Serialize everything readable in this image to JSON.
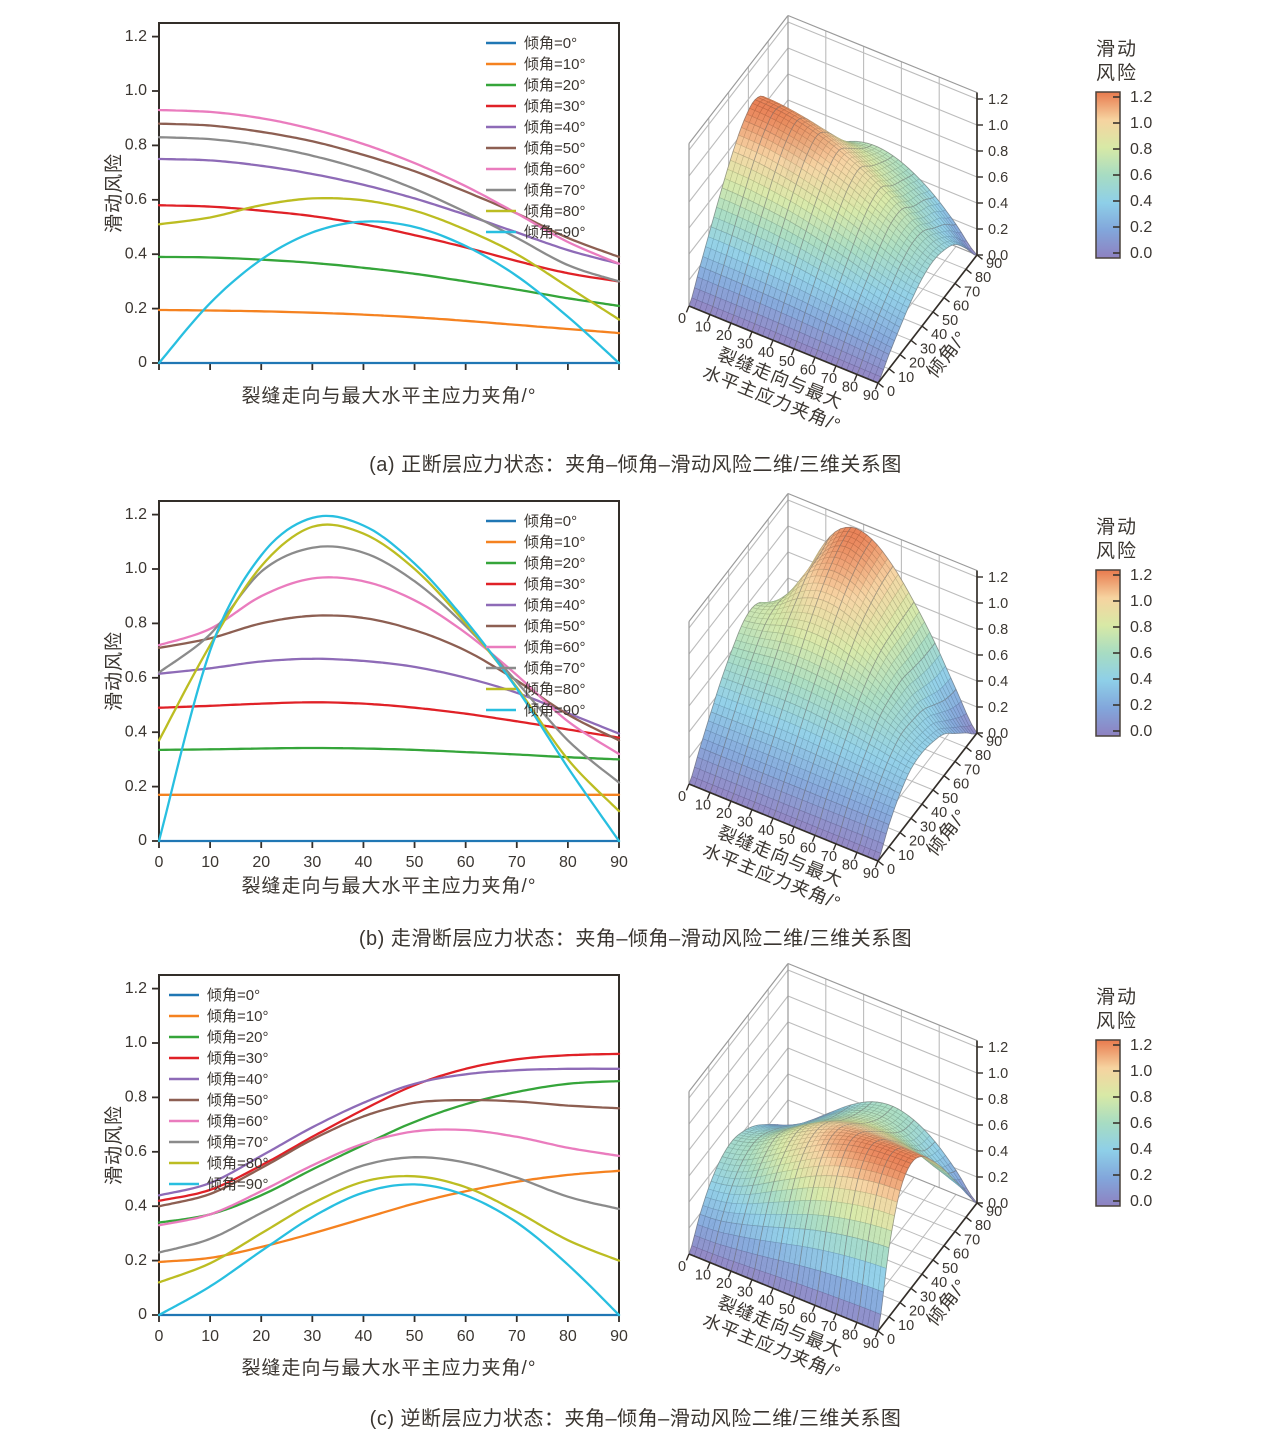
{
  "ink_color": "#3b3631",
  "frame_color": "#332e29",
  "grid3d_color": "#bcbcbc",
  "box_edge_color": "#9a9a9a",
  "axes2d": {
    "xlabel": "裂缝走向与最大水平主应力夹角/°",
    "ylabel": "滑动风险",
    "x_ticks": [
      "0",
      "10",
      "20",
      "30",
      "40",
      "50",
      "60",
      "70",
      "80",
      "90"
    ],
    "x_tick_values": [
      0,
      10,
      20,
      30,
      40,
      50,
      60,
      70,
      80,
      90
    ],
    "y_ticks": [
      "0",
      "0.2",
      "0.4",
      "0.6",
      "0.8",
      "1.0",
      "1.2"
    ],
    "y_tick_values": [
      0,
      0.2,
      0.4,
      0.6,
      0.8,
      1.0,
      1.2
    ],
    "x_range": [
      0,
      90
    ],
    "y_range": [
      0,
      1.25
    ],
    "grid": false
  },
  "axes3d": {
    "xlabel_lines": [
      "裂缝走向与最大",
      "水平主应力夹角/°"
    ],
    "ylabel": "倾角/°",
    "x_ticks": [
      "0",
      "10",
      "20",
      "30",
      "40",
      "50",
      "60",
      "70",
      "80",
      "90"
    ],
    "y_ticks": [
      "0",
      "10",
      "20",
      "30",
      "40",
      "50",
      "60",
      "70",
      "80",
      "90"
    ],
    "z_ticks": [
      "0.0",
      "0.2",
      "0.4",
      "0.6",
      "0.8",
      "1.0",
      "1.2"
    ],
    "z_tick_values": [
      0,
      0.2,
      0.4,
      0.6,
      0.8,
      1.0,
      1.2
    ],
    "z_range": [
      0,
      1.25
    ]
  },
  "colorbar": {
    "title_lines": [
      "滑动",
      "风险"
    ],
    "ticks": [
      "0.0",
      "0.2",
      "0.4",
      "0.6",
      "0.8",
      "1.0",
      "1.2"
    ],
    "tick_values": [
      0,
      0.2,
      0.4,
      0.6,
      0.8,
      1.0,
      1.2
    ]
  },
  "colormap": {
    "stops": [
      {
        "value": 0.0,
        "color": "#8e81c1"
      },
      {
        "value": 0.2,
        "color": "#82a6db"
      },
      {
        "value": 0.4,
        "color": "#8ecfe8"
      },
      {
        "value": 0.6,
        "color": "#a7dcc2"
      },
      {
        "value": 0.8,
        "color": "#d8e9a6"
      },
      {
        "value": 1.0,
        "color": "#f6d3a0"
      },
      {
        "value": 1.2,
        "color": "#e87a4e"
      }
    ]
  },
  "chart_data": [
    {
      "id": "a",
      "type": "line+surface3d",
      "fault_type_label": "正断层应力状态",
      "caption": "(a) 正断层应力状态：夹角–倾角–滑动风险二维/三维关系图",
      "legend_position": "top-right",
      "x_tick_labels_visible": false,
      "xlabel_y": 394,
      "x": [
        0,
        10,
        20,
        30,
        40,
        50,
        60,
        70,
        80,
        90
      ],
      "series": [
        {
          "name": "倾角=0°",
          "color": "#2077b4",
          "values": [
            0,
            0,
            0,
            0,
            0,
            0,
            0,
            0,
            0,
            0
          ]
        },
        {
          "name": "倾角=10°",
          "color": "#f58220",
          "values": [
            0.195,
            0.193,
            0.19,
            0.185,
            0.178,
            0.168,
            0.155,
            0.14,
            0.125,
            0.11
          ]
        },
        {
          "name": "倾角=20°",
          "color": "#35a53a",
          "values": [
            0.39,
            0.388,
            0.38,
            0.368,
            0.35,
            0.328,
            0.3,
            0.27,
            0.238,
            0.21
          ]
        },
        {
          "name": "倾角=30°",
          "color": "#e02127",
          "values": [
            0.58,
            0.575,
            0.56,
            0.54,
            0.51,
            0.47,
            0.425,
            0.375,
            0.33,
            0.3
          ]
        },
        {
          "name": "倾角=40°",
          "color": "#8e6bb7",
          "values": [
            0.75,
            0.745,
            0.725,
            0.695,
            0.655,
            0.605,
            0.545,
            0.48,
            0.415,
            0.365
          ]
        },
        {
          "name": "倾角=50°",
          "color": "#8d5f52",
          "values": [
            0.88,
            0.873,
            0.85,
            0.815,
            0.765,
            0.705,
            0.63,
            0.55,
            0.46,
            0.39
          ]
        },
        {
          "name": "倾角=60°",
          "color": "#ea7cbe",
          "values": [
            0.93,
            0.923,
            0.9,
            0.86,
            0.805,
            0.735,
            0.65,
            0.55,
            0.445,
            0.365
          ]
        },
        {
          "name": "倾角=70°",
          "color": "#8b8b8b",
          "values": [
            0.83,
            0.823,
            0.8,
            0.762,
            0.71,
            0.64,
            0.555,
            0.46,
            0.36,
            0.3
          ]
        },
        {
          "name": "倾角=80°",
          "color": "#bcbd22",
          "values": [
            0.51,
            0.535,
            0.58,
            0.605,
            0.598,
            0.56,
            0.49,
            0.4,
            0.28,
            0.16
          ]
        },
        {
          "name": "倾角=90°",
          "color": "#28bfe0",
          "values": [
            0,
            0.22,
            0.38,
            0.48,
            0.52,
            0.5,
            0.43,
            0.32,
            0.17,
            0
          ]
        }
      ]
    },
    {
      "id": "b",
      "type": "line+surface3d",
      "fault_type_label": "走滑断层应力状态",
      "caption": "(b) 走滑断层应力状态：夹角–倾角–滑动风险二维/三维关系图",
      "legend_position": "top-right",
      "x_tick_labels_visible": true,
      "xlabel_y": 406,
      "x": [
        0,
        10,
        20,
        30,
        40,
        50,
        60,
        70,
        80,
        90
      ],
      "series": [
        {
          "name": "倾角=0°",
          "color": "#2077b4",
          "values": [
            0,
            0,
            0,
            0,
            0,
            0,
            0,
            0,
            0,
            0
          ]
        },
        {
          "name": "倾角=10°",
          "color": "#f58220",
          "values": [
            0.17,
            0.17,
            0.17,
            0.17,
            0.17,
            0.17,
            0.17,
            0.17,
            0.17,
            0.17
          ]
        },
        {
          "name": "倾角=20°",
          "color": "#35a53a",
          "values": [
            0.335,
            0.337,
            0.34,
            0.342,
            0.34,
            0.335,
            0.327,
            0.318,
            0.308,
            0.3
          ]
        },
        {
          "name": "倾角=30°",
          "color": "#e02127",
          "values": [
            0.49,
            0.497,
            0.505,
            0.51,
            0.505,
            0.49,
            0.468,
            0.44,
            0.41,
            0.38
          ]
        },
        {
          "name": "倾角=40°",
          "color": "#8e6bb7",
          "values": [
            0.615,
            0.635,
            0.66,
            0.67,
            0.662,
            0.64,
            0.6,
            0.545,
            0.47,
            0.395
          ]
        },
        {
          "name": "倾角=50°",
          "color": "#8d5f52",
          "values": [
            0.71,
            0.745,
            0.8,
            0.828,
            0.82,
            0.775,
            0.7,
            0.59,
            0.465,
            0.37
          ]
        },
        {
          "name": "倾角=60°",
          "color": "#ea7cbe",
          "values": [
            0.72,
            0.78,
            0.9,
            0.965,
            0.955,
            0.885,
            0.765,
            0.61,
            0.44,
            0.32
          ]
        },
        {
          "name": "倾角=70°",
          "color": "#8b8b8b",
          "values": [
            0.62,
            0.76,
            0.99,
            1.078,
            1.06,
            0.955,
            0.79,
            0.585,
            0.37,
            0.215
          ]
        },
        {
          "name": "倾角=80°",
          "color": "#bcbd22",
          "values": [
            0.37,
            0.72,
            1.01,
            1.155,
            1.13,
            1.0,
            0.8,
            0.565,
            0.3,
            0.11
          ]
        },
        {
          "name": "倾角=90°",
          "color": "#28bfe0",
          "values": [
            0,
            0.7,
            1.05,
            1.188,
            1.16,
            1.02,
            0.81,
            0.56,
            0.27,
            0
          ]
        }
      ]
    },
    {
      "id": "c",
      "type": "line+surface3d",
      "fault_type_label": "逆断层应力状态",
      "caption": "(c) 逆断层应力状态：夹角–倾角–滑动风险二维/三维关系图",
      "legend_position": "top-left",
      "x_tick_labels_visible": true,
      "xlabel_y": 414,
      "x": [
        0,
        10,
        20,
        30,
        40,
        50,
        60,
        70,
        80,
        90
      ],
      "series": [
        {
          "name": "倾角=0°",
          "color": "#2077b4",
          "values": [
            0,
            0,
            0,
            0,
            0,
            0,
            0,
            0,
            0,
            0
          ]
        },
        {
          "name": "倾角=10°",
          "color": "#f58220",
          "values": [
            0.195,
            0.21,
            0.25,
            0.3,
            0.355,
            0.41,
            0.455,
            0.49,
            0.515,
            0.53
          ]
        },
        {
          "name": "倾角=20°",
          "color": "#35a53a",
          "values": [
            0.34,
            0.37,
            0.44,
            0.535,
            0.625,
            0.71,
            0.775,
            0.82,
            0.85,
            0.86
          ]
        },
        {
          "name": "倾角=30°",
          "color": "#e02127",
          "values": [
            0.42,
            0.46,
            0.55,
            0.655,
            0.755,
            0.845,
            0.905,
            0.94,
            0.955,
            0.96
          ]
        },
        {
          "name": "倾角=40°",
          "color": "#8e6bb7",
          "values": [
            0.44,
            0.485,
            0.585,
            0.69,
            0.78,
            0.85,
            0.885,
            0.9,
            0.905,
            0.905
          ]
        },
        {
          "name": "倾角=50°",
          "color": "#8d5f52",
          "values": [
            0.4,
            0.445,
            0.54,
            0.645,
            0.73,
            0.78,
            0.79,
            0.785,
            0.77,
            0.76
          ]
        },
        {
          "name": "倾角=60°",
          "color": "#ea7cbe",
          "values": [
            0.33,
            0.37,
            0.455,
            0.55,
            0.63,
            0.675,
            0.68,
            0.655,
            0.615,
            0.585
          ]
        },
        {
          "name": "倾角=70°",
          "color": "#8b8b8b",
          "values": [
            0.23,
            0.28,
            0.375,
            0.47,
            0.55,
            0.58,
            0.56,
            0.505,
            0.435,
            0.39
          ]
        },
        {
          "name": "倾角=80°",
          "color": "#bcbd22",
          "values": [
            0.12,
            0.19,
            0.3,
            0.41,
            0.49,
            0.51,
            0.47,
            0.38,
            0.275,
            0.2
          ]
        },
        {
          "name": "倾角=90°",
          "color": "#28bfe0",
          "values": [
            0,
            0.105,
            0.235,
            0.36,
            0.45,
            0.48,
            0.44,
            0.34,
            0.185,
            0
          ]
        }
      ]
    }
  ]
}
